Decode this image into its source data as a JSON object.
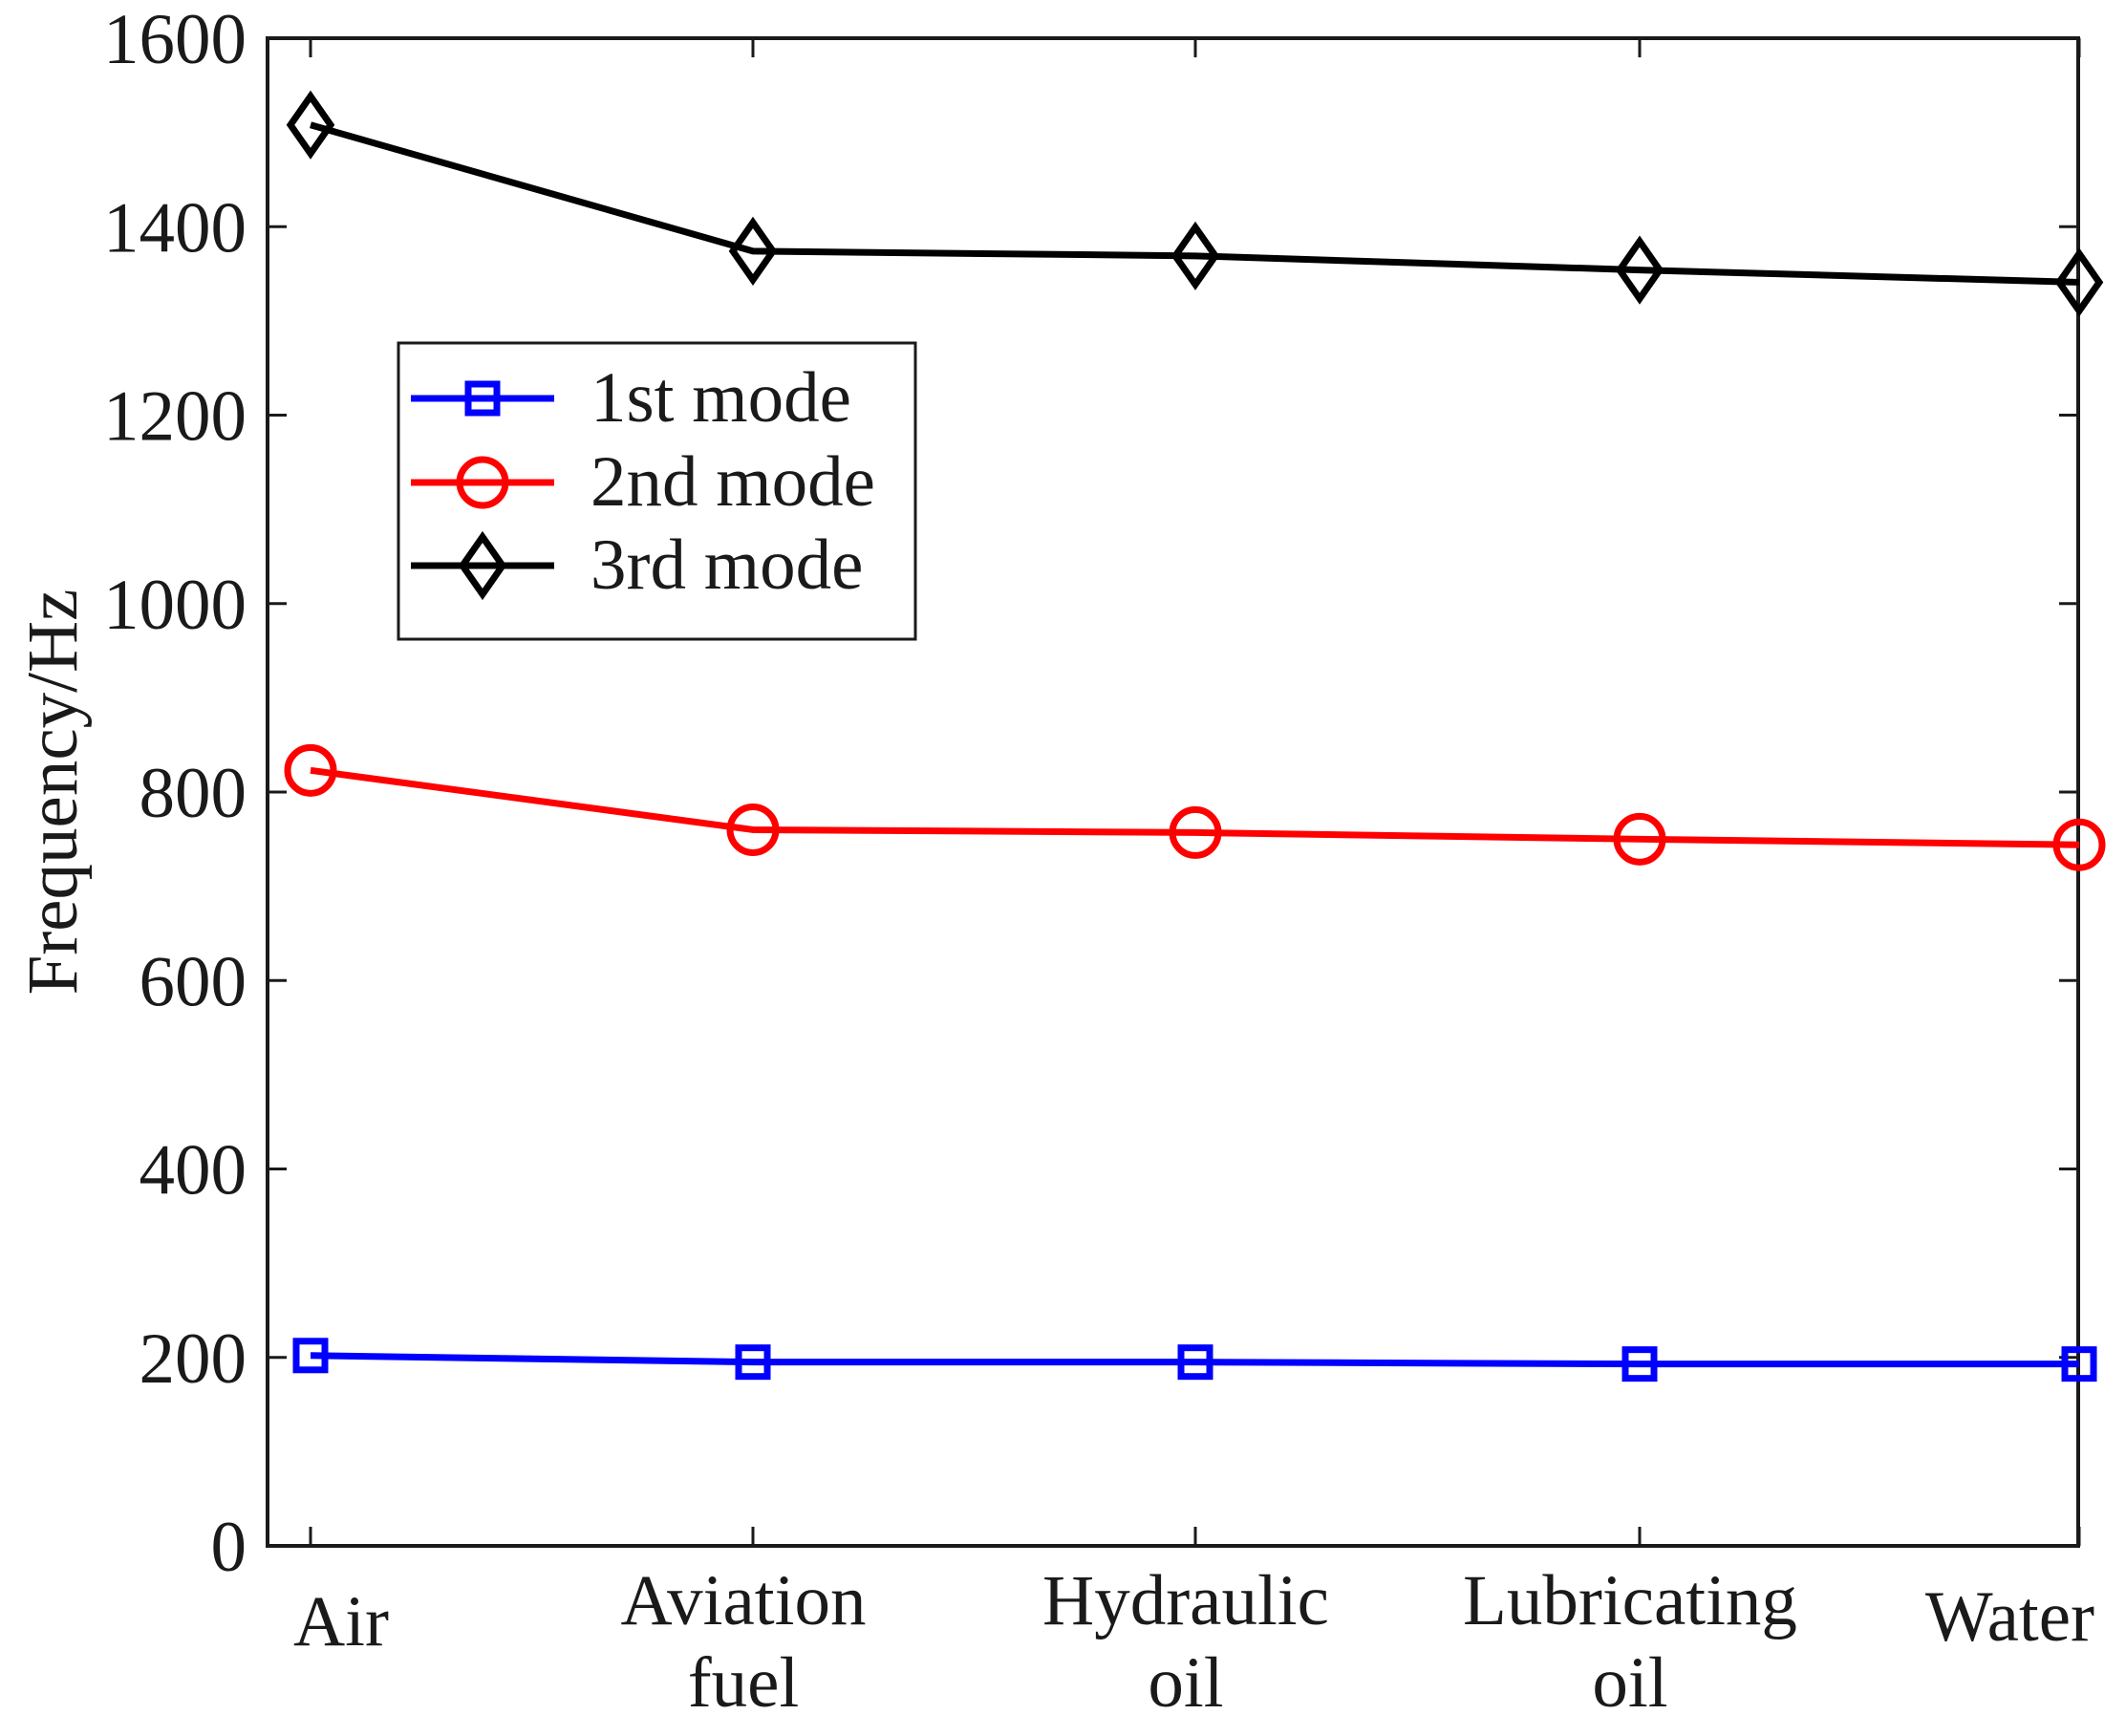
{
  "chart_data": {
    "type": "line",
    "title": "",
    "xlabel": "",
    "ylabel": "Frequency/Hz",
    "ylim": [
      0,
      1600
    ],
    "yticks": [
      0,
      200,
      400,
      600,
      800,
      1000,
      1200,
      1400,
      1600
    ],
    "categories": [
      [
        "Air"
      ],
      [
        "Aviation",
        "fuel"
      ],
      [
        "Hydraulic",
        "oil"
      ],
      [
        "Lubricating",
        "oil"
      ],
      [
        "Water"
      ]
    ],
    "series": [
      {
        "name": "1st mode",
        "color": "#0000ff",
        "marker": "square",
        "values": [
          202,
          195,
          195,
          193,
          193
        ]
      },
      {
        "name": "2nd mode",
        "color": "#ff0000",
        "marker": "circle",
        "values": [
          823,
          760,
          757,
          750,
          744
        ]
      },
      {
        "name": "3rd mode",
        "color": "#000000",
        "marker": "diamond",
        "values": [
          1508,
          1374,
          1369,
          1354,
          1341
        ]
      }
    ],
    "legend_position": "upper-left",
    "grid": false
  }
}
